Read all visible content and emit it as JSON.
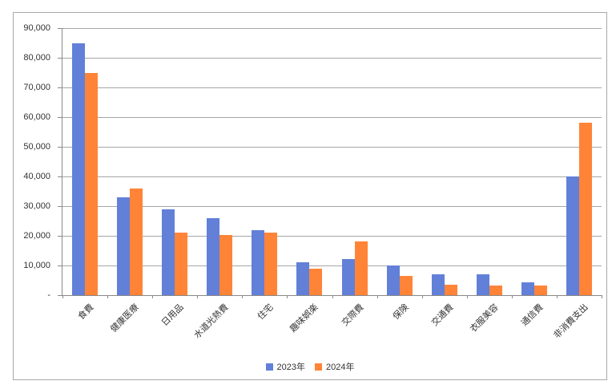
{
  "chart_data": {
    "type": "bar",
    "title": "",
    "categories": [
      "食費",
      "健康医療",
      "日用品",
      "水道光熱費",
      "住宅",
      "趣味娯楽",
      "交際費",
      "保険",
      "交通費",
      "衣服美容",
      "通信費",
      "非消費支出"
    ],
    "series": [
      {
        "name": "2023年",
        "color": "#6280d8",
        "values": [
          85000,
          33000,
          29000,
          26000,
          22000,
          11000,
          12300,
          10000,
          7000,
          7000,
          4200,
          40000
        ]
      },
      {
        "name": "2024年",
        "color": "#ff8438",
        "values": [
          75000,
          36000,
          21000,
          20300,
          21000,
          9000,
          18000,
          6500,
          3600,
          3300,
          3300,
          58000
        ]
      }
    ],
    "xlabel": "",
    "ylabel": "",
    "ylim": [
      0,
      90000
    ],
    "ytick_interval": 10000,
    "ytick_labels_top_to_bottom": [
      "90,000",
      "80,000",
      "70,000",
      "60,000",
      "50,000",
      "40,000",
      "30,000",
      "20,000",
      "10,000",
      "-"
    ],
    "zero_label": "-",
    "grid": true,
    "legend_position": "bottom-center",
    "colors": {
      "gridline": "#a6a6a6",
      "axis": "#898989",
      "border": "#a9a9a9",
      "text": "#333333",
      "background": "#ffffff"
    }
  }
}
